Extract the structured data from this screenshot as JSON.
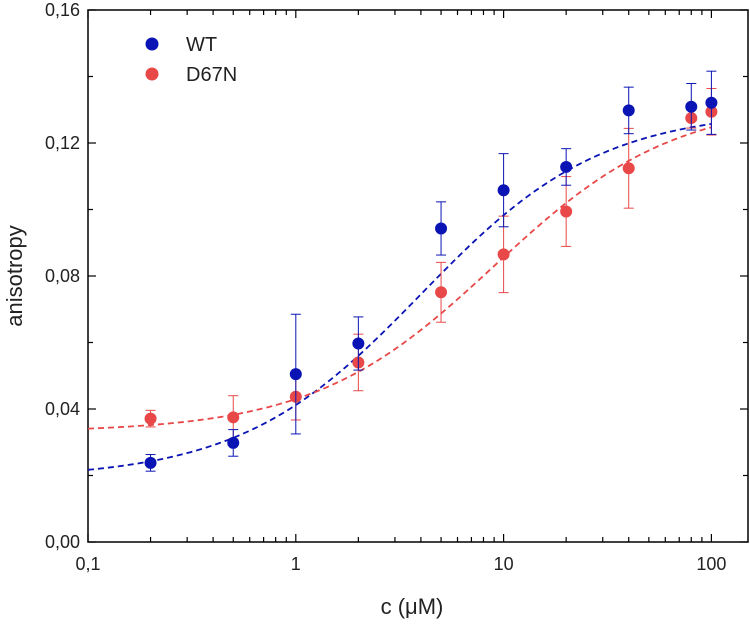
{
  "chart_data": {
    "type": "scatter",
    "title": "",
    "xlabel": "c (μM)",
    "ylabel": "anisotropy",
    "xscale": "log",
    "xlim": [
      0.1,
      150
    ],
    "ylim": [
      0.0,
      0.16
    ],
    "xticks": [
      {
        "value": 0.1,
        "label": "0,1"
      },
      {
        "value": 1,
        "label": "1"
      },
      {
        "value": 10,
        "label": "10"
      },
      {
        "value": 100,
        "label": "100"
      }
    ],
    "yticks": [
      {
        "value": 0.0,
        "label": "0,00"
      },
      {
        "value": 0.04,
        "label": "0,04"
      },
      {
        "value": 0.08,
        "label": "0,08"
      },
      {
        "value": 0.12,
        "label": "0,12"
      },
      {
        "value": 0.16,
        "label": "0,16"
      }
    ],
    "grid": false,
    "legend_position": "top-left",
    "series": [
      {
        "name": "WT",
        "color": "#0a14b4",
        "x": [
          0.2,
          0.5,
          1,
          2,
          5,
          10,
          20,
          40,
          80,
          100
        ],
        "y": [
          0.0238,
          0.0298,
          0.0505,
          0.0597,
          0.0943,
          0.1058,
          0.1128,
          0.1298,
          0.1309,
          0.1321
        ],
        "err": [
          0.0025,
          0.004,
          0.018,
          0.008,
          0.008,
          0.011,
          0.0055,
          0.007,
          0.007,
          0.0095
        ],
        "fit": {
          "bottom": 0.019,
          "top": 0.13,
          "ec50": 4.0,
          "hill": 1.0,
          "style": "dashed"
        }
      },
      {
        "name": "D67N",
        "color": "#e84848",
        "x": [
          0.2,
          0.5,
          1,
          2,
          5,
          10,
          20,
          40,
          80,
          100
        ],
        "y": [
          0.0371,
          0.0375,
          0.0437,
          0.054,
          0.0751,
          0.0865,
          0.0994,
          0.1124,
          0.1275,
          0.1294
        ],
        "err": [
          0.0025,
          0.0065,
          0.007,
          0.0085,
          0.009,
          0.0115,
          0.0105,
          0.012,
          0.003,
          0.007
        ],
        "fit": {
          "bottom": 0.033,
          "top": 0.133,
          "ec50": 9.0,
          "hill": 1.0,
          "style": "dashed"
        }
      }
    ]
  }
}
